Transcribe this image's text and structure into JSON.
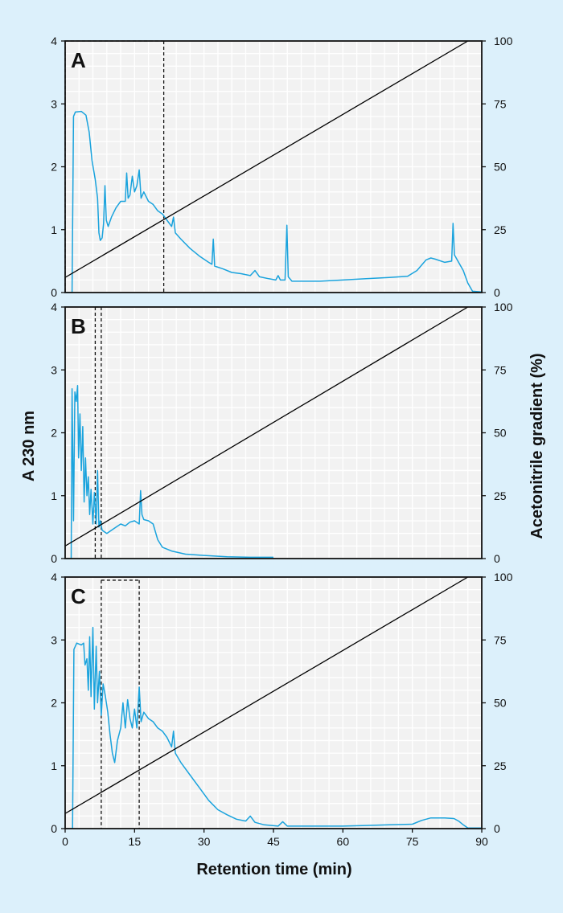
{
  "chart_data": {
    "type": "line",
    "xlabel": "Retention time (min)",
    "ylabel": "A 230 nm",
    "y2label": "Acetonitrile gradient (%)",
    "xlim": [
      0,
      90
    ],
    "ylim": [
      0,
      4
    ],
    "y2lim": [
      0,
      100
    ],
    "x_ticks": [
      "0",
      "15",
      "30",
      "45",
      "60",
      "75",
      "90"
    ],
    "y_ticks": [
      "0",
      "1",
      "2",
      "3",
      "4"
    ],
    "y2_ticks": [
      "0",
      "25",
      "50",
      "75",
      "100"
    ],
    "colors": {
      "absorbance": "#1aa3dd",
      "gradient": "#000000",
      "background": "#dcf0fb",
      "plot": "#f2f2f2",
      "grid": "#ffffff"
    },
    "grid": true,
    "panels": [
      {
        "label": "A",
        "gradient": [
          [
            0,
            6
          ],
          [
            87,
            100
          ]
        ],
        "markers": [
          0,
          21.3
        ],
        "marker_box_top": 4,
        "absorbance": [
          [
            0,
            0
          ],
          [
            1.5,
            0
          ],
          [
            1.8,
            2.8
          ],
          [
            2.2,
            2.87
          ],
          [
            3.5,
            2.88
          ],
          [
            4.5,
            2.82
          ],
          [
            5.2,
            2.55
          ],
          [
            5.8,
            2.1
          ],
          [
            6.5,
            1.8
          ],
          [
            7.0,
            1.5
          ],
          [
            7.3,
            0.95
          ],
          [
            7.6,
            0.83
          ],
          [
            8.0,
            0.87
          ],
          [
            8.3,
            1.1
          ],
          [
            8.6,
            1.7
          ],
          [
            8.9,
            1.15
          ],
          [
            9.3,
            1.05
          ],
          [
            10,
            1.2
          ],
          [
            11,
            1.35
          ],
          [
            12,
            1.45
          ],
          [
            13,
            1.45
          ],
          [
            13.3,
            1.9
          ],
          [
            13.6,
            1.5
          ],
          [
            14,
            1.55
          ],
          [
            14.5,
            1.85
          ],
          [
            15,
            1.6
          ],
          [
            15.5,
            1.7
          ],
          [
            16.0,
            1.95
          ],
          [
            16.4,
            1.5
          ],
          [
            17,
            1.6
          ],
          [
            18,
            1.45
          ],
          [
            19,
            1.4
          ],
          [
            20,
            1.3
          ],
          [
            21,
            1.25
          ],
          [
            22,
            1.15
          ],
          [
            23,
            1.05
          ],
          [
            23.4,
            1.2
          ],
          [
            23.8,
            0.95
          ],
          [
            25,
            0.85
          ],
          [
            27,
            0.7
          ],
          [
            29,
            0.58
          ],
          [
            31,
            0.48
          ],
          [
            31.7,
            0.45
          ],
          [
            32.0,
            0.85
          ],
          [
            32.3,
            0.42
          ],
          [
            34,
            0.38
          ],
          [
            36,
            0.32
          ],
          [
            38,
            0.3
          ],
          [
            40,
            0.27
          ],
          [
            41,
            0.35
          ],
          [
            42,
            0.25
          ],
          [
            44,
            0.22
          ],
          [
            45.5,
            0.2
          ],
          [
            46,
            0.27
          ],
          [
            46.5,
            0.2
          ],
          [
            47.5,
            0.2
          ],
          [
            47.9,
            1.07
          ],
          [
            48.2,
            0.25
          ],
          [
            49,
            0.18
          ],
          [
            55,
            0.18
          ],
          [
            60,
            0.2
          ],
          [
            65,
            0.22
          ],
          [
            70,
            0.24
          ],
          [
            74,
            0.26
          ],
          [
            76,
            0.35
          ],
          [
            78,
            0.52
          ],
          [
            79,
            0.55
          ],
          [
            80,
            0.53
          ],
          [
            82,
            0.48
          ],
          [
            83.5,
            0.5
          ],
          [
            83.8,
            1.1
          ],
          [
            84.1,
            0.6
          ],
          [
            85,
            0.48
          ],
          [
            86,
            0.35
          ],
          [
            87,
            0.15
          ],
          [
            88,
            0.02
          ],
          [
            90,
            0.01
          ]
        ]
      },
      {
        "label": "B",
        "gradient": [
          [
            0,
            5
          ],
          [
            87,
            100
          ]
        ],
        "markers": [
          6.5,
          7.8
        ],
        "marker_box_top": 4,
        "absorbance": [
          [
            0,
            0
          ],
          [
            1.3,
            0
          ],
          [
            1.5,
            2.7
          ],
          [
            1.8,
            0.6
          ],
          [
            2.1,
            2.65
          ],
          [
            2.4,
            2.5
          ],
          [
            2.7,
            2.75
          ],
          [
            2.9,
            1.6
          ],
          [
            3.2,
            2.3
          ],
          [
            3.5,
            1.4
          ],
          [
            3.8,
            2.1
          ],
          [
            4.1,
            0.9
          ],
          [
            4.4,
            1.6
          ],
          [
            4.7,
            1.0
          ],
          [
            5.0,
            1.3
          ],
          [
            5.3,
            0.7
          ],
          [
            5.6,
            1.1
          ],
          [
            6.0,
            0.55
          ],
          [
            6.3,
            1.05
          ],
          [
            6.7,
            0.55
          ],
          [
            7.0,
            1.4
          ],
          [
            7.3,
            0.5
          ],
          [
            7.6,
            0.6
          ],
          [
            8,
            0.45
          ],
          [
            9,
            0.4
          ],
          [
            10,
            0.45
          ],
          [
            11,
            0.5
          ],
          [
            12,
            0.55
          ],
          [
            13,
            0.52
          ],
          [
            14,
            0.58
          ],
          [
            15,
            0.6
          ],
          [
            16,
            0.55
          ],
          [
            16.3,
            1.08
          ],
          [
            16.6,
            0.7
          ],
          [
            17,
            0.62
          ],
          [
            18,
            0.6
          ],
          [
            19,
            0.55
          ],
          [
            20,
            0.3
          ],
          [
            21,
            0.18
          ],
          [
            23,
            0.12
          ],
          [
            26,
            0.07
          ],
          [
            30,
            0.05
          ],
          [
            35,
            0.03
          ],
          [
            40,
            0.02
          ],
          [
            45,
            0.02
          ]
        ]
      },
      {
        "label": "C",
        "gradient": [
          [
            0,
            6
          ],
          [
            87,
            100
          ]
        ],
        "markers": [
          7.8,
          16
        ],
        "marker_box_top": 3.95,
        "absorbance": [
          [
            0,
            0
          ],
          [
            1.6,
            0
          ],
          [
            1.9,
            2.85
          ],
          [
            2.5,
            2.95
          ],
          [
            3.5,
            2.92
          ],
          [
            4,
            2.95
          ],
          [
            4.3,
            2.6
          ],
          [
            4.7,
            2.7
          ],
          [
            5.0,
            2.2
          ],
          [
            5.3,
            3.05
          ],
          [
            5.6,
            2.1
          ],
          [
            6.0,
            3.2
          ],
          [
            6.3,
            1.9
          ],
          [
            6.7,
            2.9
          ],
          [
            7.0,
            2.0
          ],
          [
            7.4,
            2.5
          ],
          [
            7.8,
            1.8
          ],
          [
            8.2,
            2.3
          ],
          [
            8.7,
            2.1
          ],
          [
            9.2,
            1.85
          ],
          [
            9.7,
            1.5
          ],
          [
            10.2,
            1.2
          ],
          [
            10.7,
            1.05
          ],
          [
            11.3,
            1.4
          ],
          [
            12,
            1.6
          ],
          [
            12.5,
            2.0
          ],
          [
            13,
            1.6
          ],
          [
            13.5,
            2.05
          ],
          [
            14,
            1.75
          ],
          [
            14.5,
            1.6
          ],
          [
            15,
            1.9
          ],
          [
            15.5,
            1.6
          ],
          [
            16.0,
            2.25
          ],
          [
            16.4,
            1.7
          ],
          [
            17,
            1.85
          ],
          [
            18,
            1.75
          ],
          [
            19,
            1.7
          ],
          [
            20,
            1.6
          ],
          [
            21,
            1.55
          ],
          [
            22,
            1.45
          ],
          [
            23,
            1.3
          ],
          [
            23.4,
            1.55
          ],
          [
            23.8,
            1.2
          ],
          [
            25,
            1.05
          ],
          [
            27,
            0.85
          ],
          [
            29,
            0.65
          ],
          [
            31,
            0.45
          ],
          [
            33,
            0.3
          ],
          [
            35,
            0.22
          ],
          [
            37,
            0.15
          ],
          [
            39,
            0.12
          ],
          [
            40,
            0.2
          ],
          [
            41,
            0.1
          ],
          [
            43,
            0.06
          ],
          [
            46,
            0.04
          ],
          [
            47,
            0.11
          ],
          [
            48,
            0.04
          ],
          [
            55,
            0.04
          ],
          [
            60,
            0.04
          ],
          [
            65,
            0.05
          ],
          [
            70,
            0.06
          ],
          [
            75,
            0.07
          ],
          [
            77,
            0.13
          ],
          [
            79,
            0.17
          ],
          [
            82,
            0.17
          ],
          [
            84,
            0.16
          ],
          [
            85,
            0.12
          ],
          [
            86,
            0.06
          ],
          [
            87,
            0.01
          ],
          [
            90,
            0.01
          ]
        ]
      }
    ]
  }
}
